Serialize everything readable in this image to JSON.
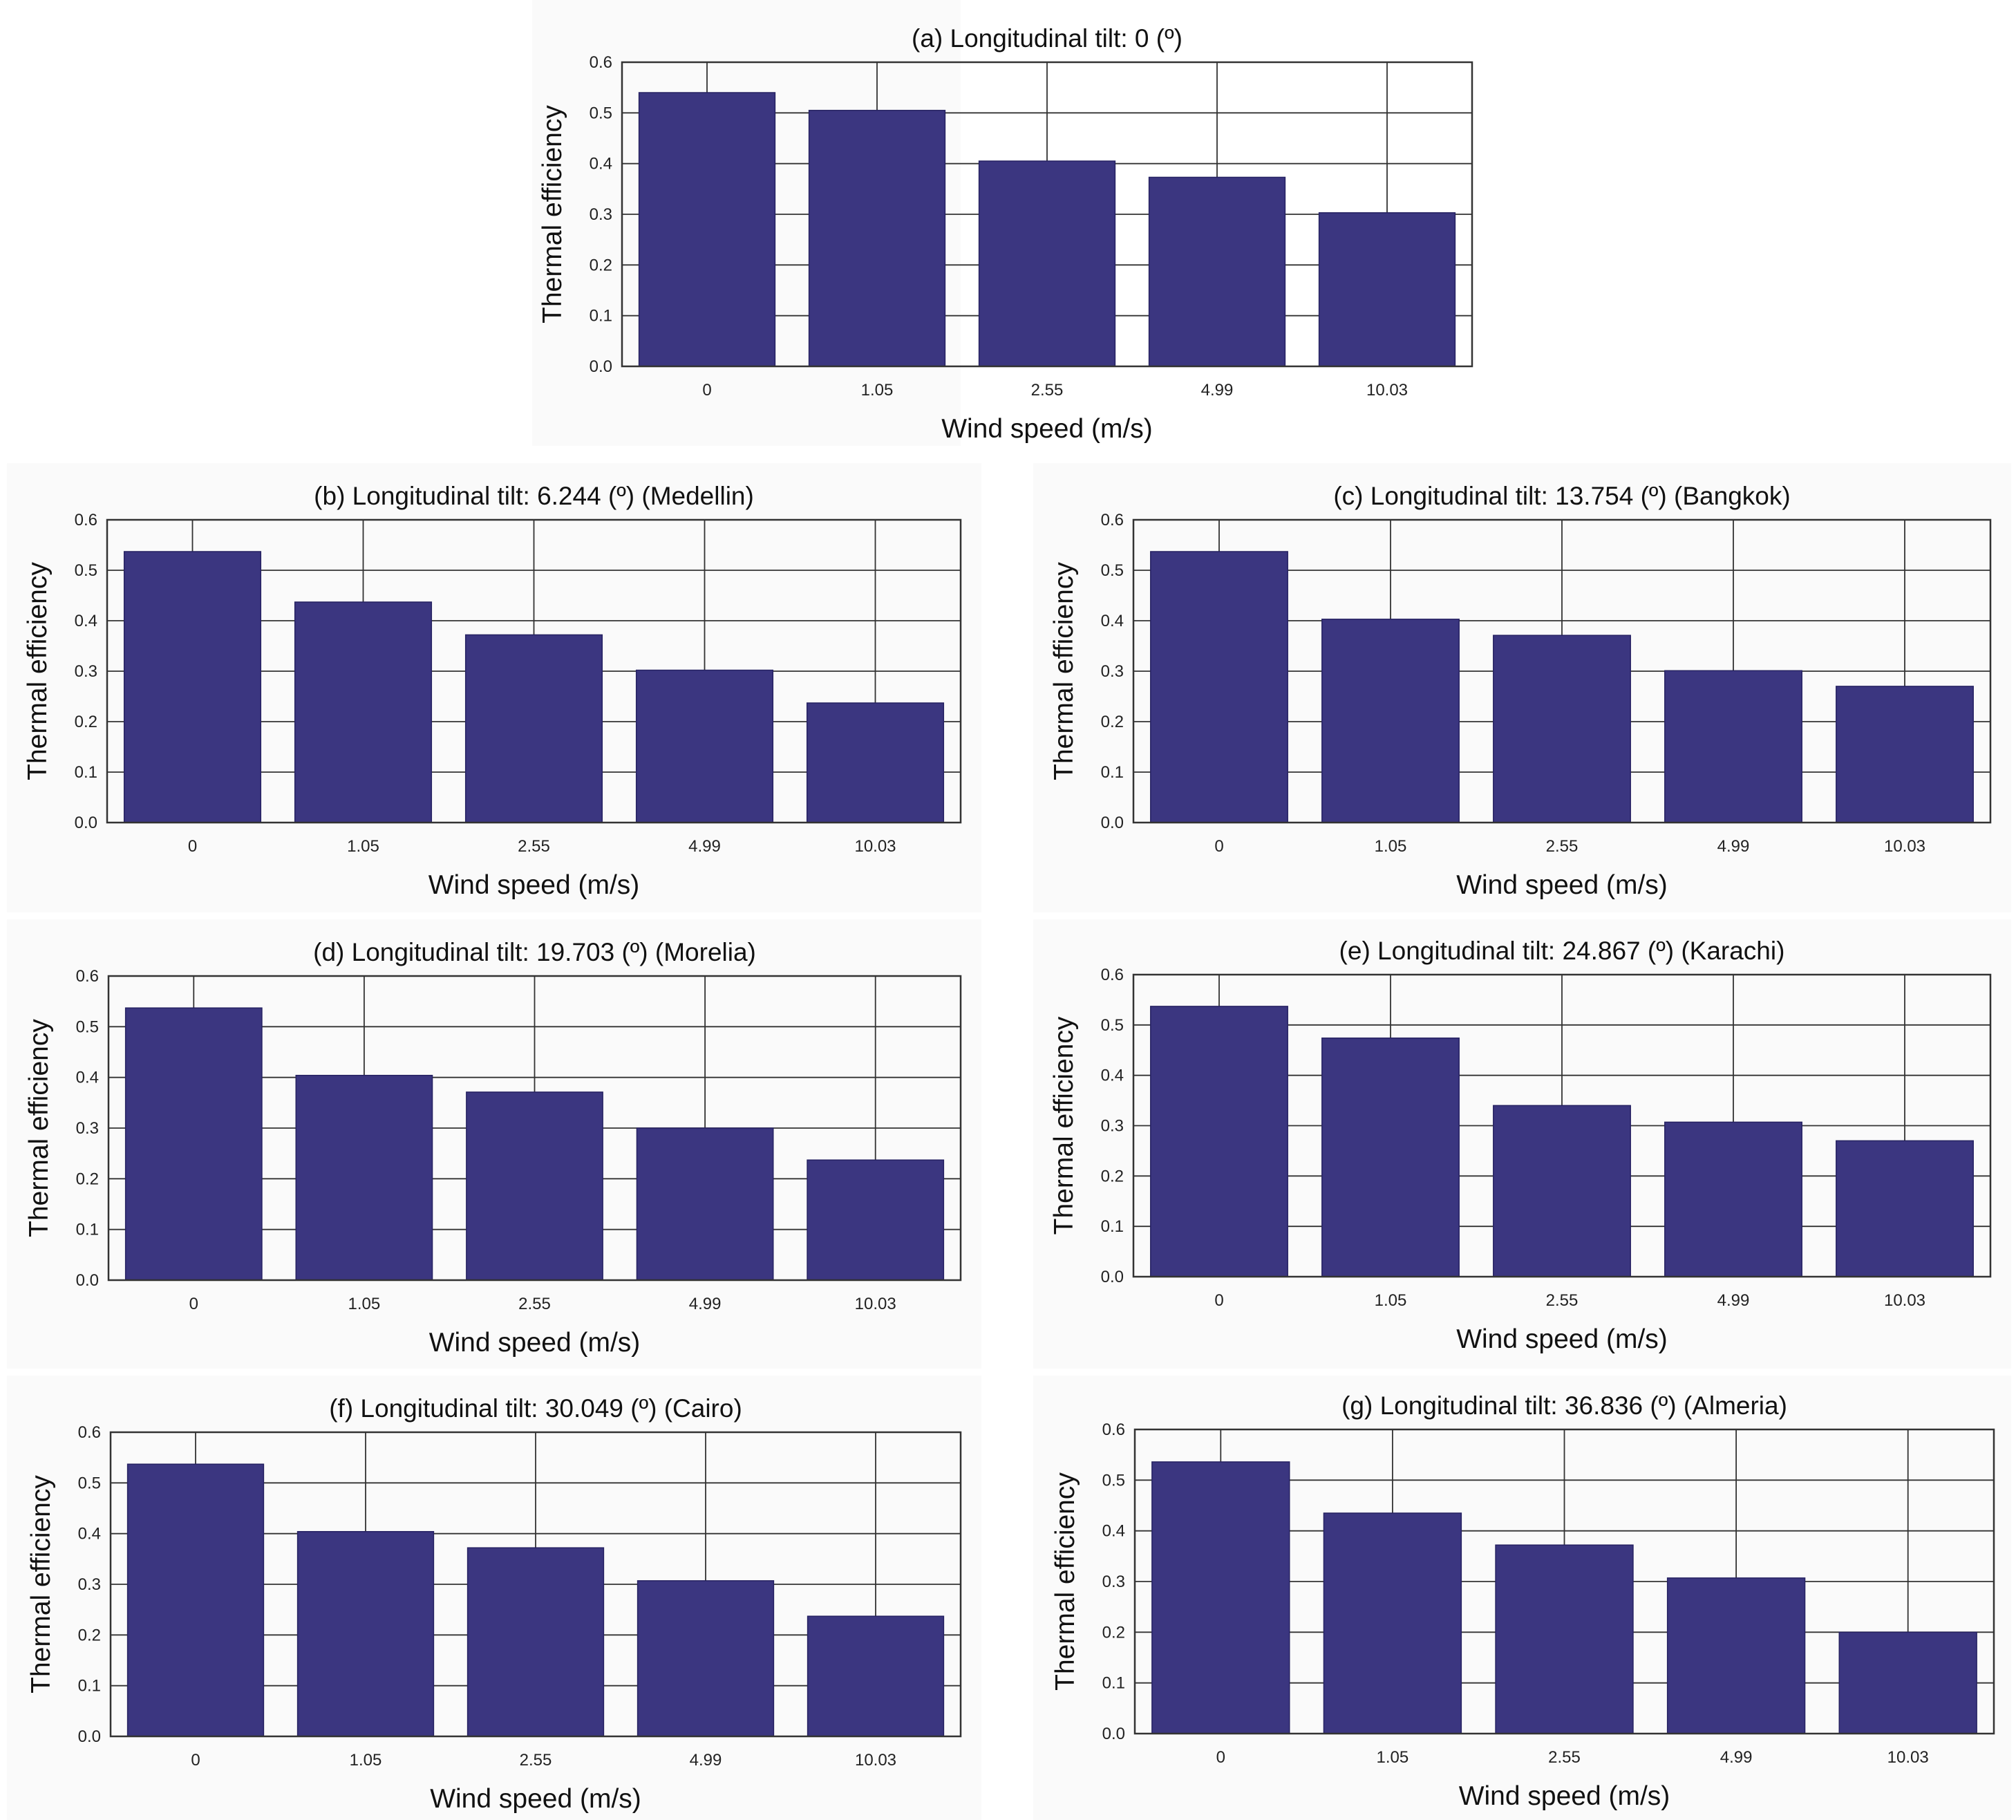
{
  "figure": {
    "bar_color": "#3b3680",
    "grid_color": "#333333"
  },
  "chart_data": [
    {
      "type": "bar",
      "title": "(a) Longitudinal tilt: 0 (º)",
      "xlabel": "Wind speed (m/s)",
      "ylabel": "Thermal efficiency",
      "categories": [
        "0",
        "1.05",
        "2.55",
        "4.99",
        "10.03"
      ],
      "values": [
        0.54,
        0.505,
        0.405,
        0.373,
        0.303
      ],
      "ylim": [
        0.0,
        0.6
      ],
      "yticks": [
        "0.0",
        "0.1",
        "0.2",
        "0.3",
        "0.4",
        "0.5",
        "0.6"
      ],
      "grid": true
    },
    {
      "type": "bar",
      "title": "(b) Longitudinal tilt: 6.244 (º) (Medellin)",
      "xlabel": "Wind speed (m/s)",
      "ylabel": "Thermal efficiency",
      "categories": [
        "0",
        "1.05",
        "2.55",
        "4.99",
        "10.03"
      ],
      "values": [
        0.537,
        0.437,
        0.372,
        0.302,
        0.237
      ],
      "ylim": [
        0.0,
        0.6
      ],
      "yticks": [
        "0.0",
        "0.1",
        "0.2",
        "0.3",
        "0.4",
        "0.5",
        "0.6"
      ],
      "grid": true
    },
    {
      "type": "bar",
      "title": "(c) Longitudinal tilt: 13.754 (º) (Bangkok)",
      "xlabel": "Wind speed (m/s)",
      "ylabel": "Thermal efficiency",
      "categories": [
        "0",
        "1.05",
        "2.55",
        "4.99",
        "10.03"
      ],
      "values": [
        0.537,
        0.403,
        0.371,
        0.301,
        0.27
      ],
      "ylim": [
        0.0,
        0.6
      ],
      "yticks": [
        "0.0",
        "0.1",
        "0.2",
        "0.3",
        "0.4",
        "0.5",
        "0.6"
      ],
      "grid": true
    },
    {
      "type": "bar",
      "title": "(d) Longitudinal tilt: 19.703 (º) (Morelia)",
      "xlabel": "Wind speed (m/s)",
      "ylabel": "Thermal efficiency",
      "categories": [
        "0",
        "1.05",
        "2.55",
        "4.99",
        "10.03"
      ],
      "values": [
        0.537,
        0.404,
        0.371,
        0.3,
        0.237
      ],
      "ylim": [
        0.0,
        0.6
      ],
      "yticks": [
        "0.0",
        "0.1",
        "0.2",
        "0.3",
        "0.4",
        "0.5",
        "0.6"
      ],
      "grid": true
    },
    {
      "type": "bar",
      "title": "(e) Longitudinal tilt: 24.867 (º) (Karachi)",
      "xlabel": "Wind speed (m/s)",
      "ylabel": "Thermal efficiency",
      "categories": [
        "0",
        "1.05",
        "2.55",
        "4.99",
        "10.03"
      ],
      "values": [
        0.537,
        0.474,
        0.34,
        0.307,
        0.27
      ],
      "ylim": [
        0.0,
        0.6
      ],
      "yticks": [
        "0.0",
        "0.1",
        "0.2",
        "0.3",
        "0.4",
        "0.5",
        "0.6"
      ],
      "grid": true
    },
    {
      "type": "bar",
      "title": "(f) Longitudinal tilt: 30.049 (º) (Cairo)",
      "xlabel": "Wind speed (m/s)",
      "ylabel": "Thermal efficiency",
      "categories": [
        "0",
        "1.05",
        "2.55",
        "4.99",
        "10.03"
      ],
      "values": [
        0.537,
        0.404,
        0.372,
        0.307,
        0.237
      ],
      "ylim": [
        0.0,
        0.6
      ],
      "yticks": [
        "0.0",
        "0.1",
        "0.2",
        "0.3",
        "0.4",
        "0.5",
        "0.6"
      ],
      "grid": true
    },
    {
      "type": "bar",
      "title": "(g) Longitudinal tilt: 36.836 (º) (Almeria)",
      "xlabel": "Wind speed (m/s)",
      "ylabel": "Thermal efficiency",
      "categories": [
        "0",
        "1.05",
        "2.55",
        "4.99",
        "10.03"
      ],
      "values": [
        0.536,
        0.435,
        0.372,
        0.307,
        0.2
      ],
      "ylim": [
        0.0,
        0.6
      ],
      "yticks": [
        "0.0",
        "0.1",
        "0.2",
        "0.3",
        "0.4",
        "0.5",
        "0.6"
      ],
      "grid": true
    }
  ]
}
